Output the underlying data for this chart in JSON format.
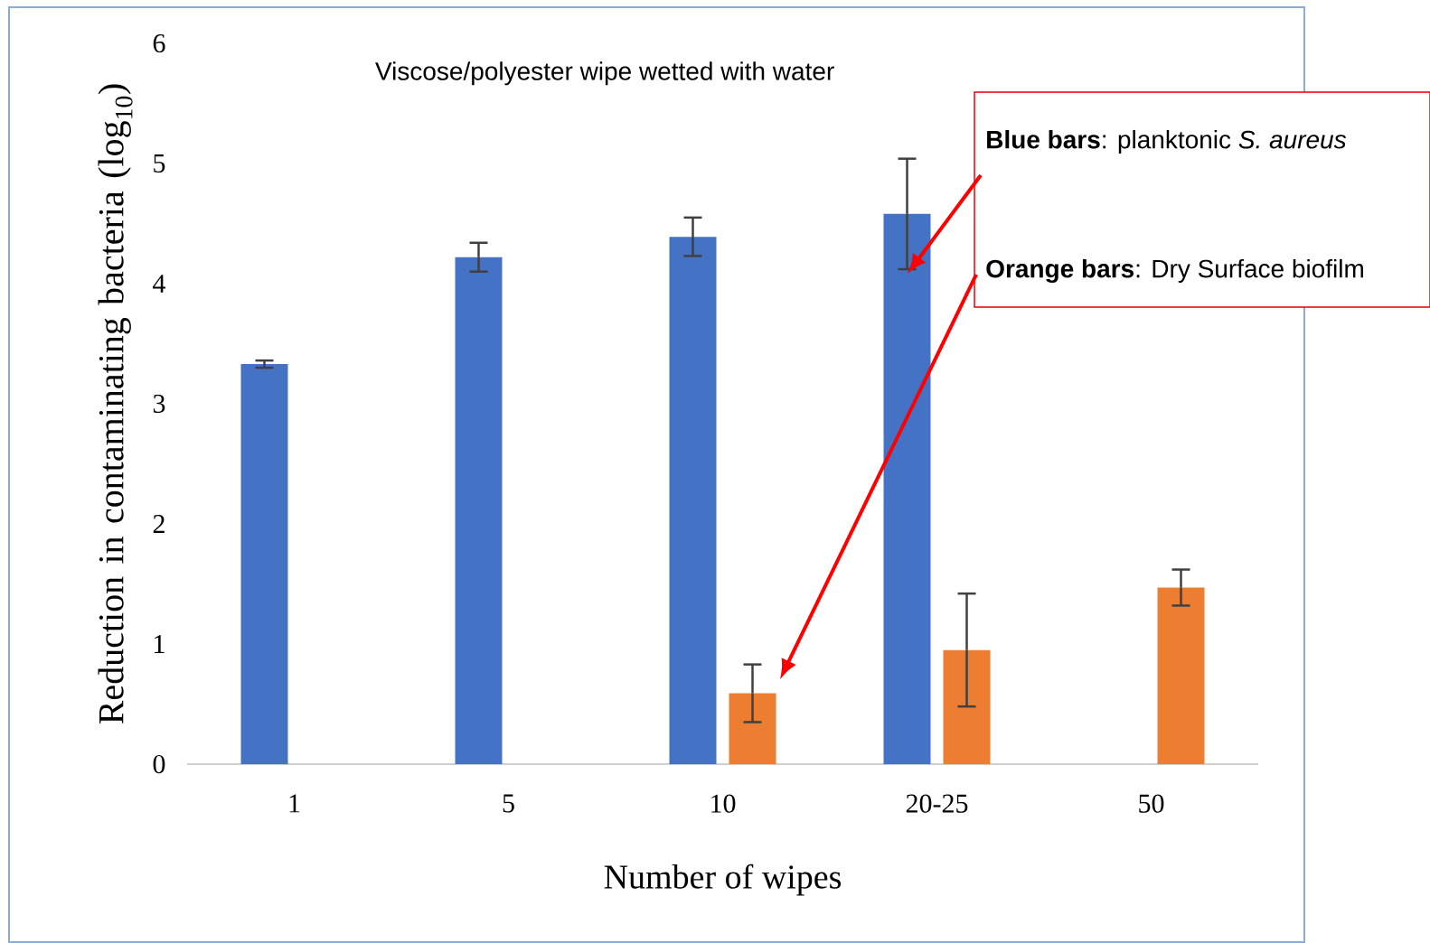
{
  "chart_data": {
    "type": "bar",
    "title": "Viscose/polyester wipe wetted with water",
    "xlabel": "Number of wipes",
    "ylabel": "Reduction in contaminating bacteria (log$_{10}$)",
    "categories": [
      "1",
      "5",
      "10",
      "20-25",
      "50"
    ],
    "series": [
      {
        "color": "#4472c4",
        "values": [
          3.33,
          4.22,
          4.39,
          4.58,
          null
        ],
        "errors": [
          0.03,
          0.12,
          0.16,
          0.46,
          null
        ]
      },
      {
        "color": "#ed7d31",
        "values": [
          null,
          null,
          0.59,
          0.95,
          1.47
        ],
        "errors": [
          null,
          null,
          0.24,
          0.47,
          0.15
        ]
      }
    ],
    "ylim": [
      0,
      6
    ],
    "yticks": [
      0,
      1,
      2,
      3,
      4,
      5,
      6
    ],
    "annotations": [
      "**Blue bars**: planktonic *S. aureus*",
      "**Orange bars**:  Dry Surface biofilm"
    ]
  }
}
